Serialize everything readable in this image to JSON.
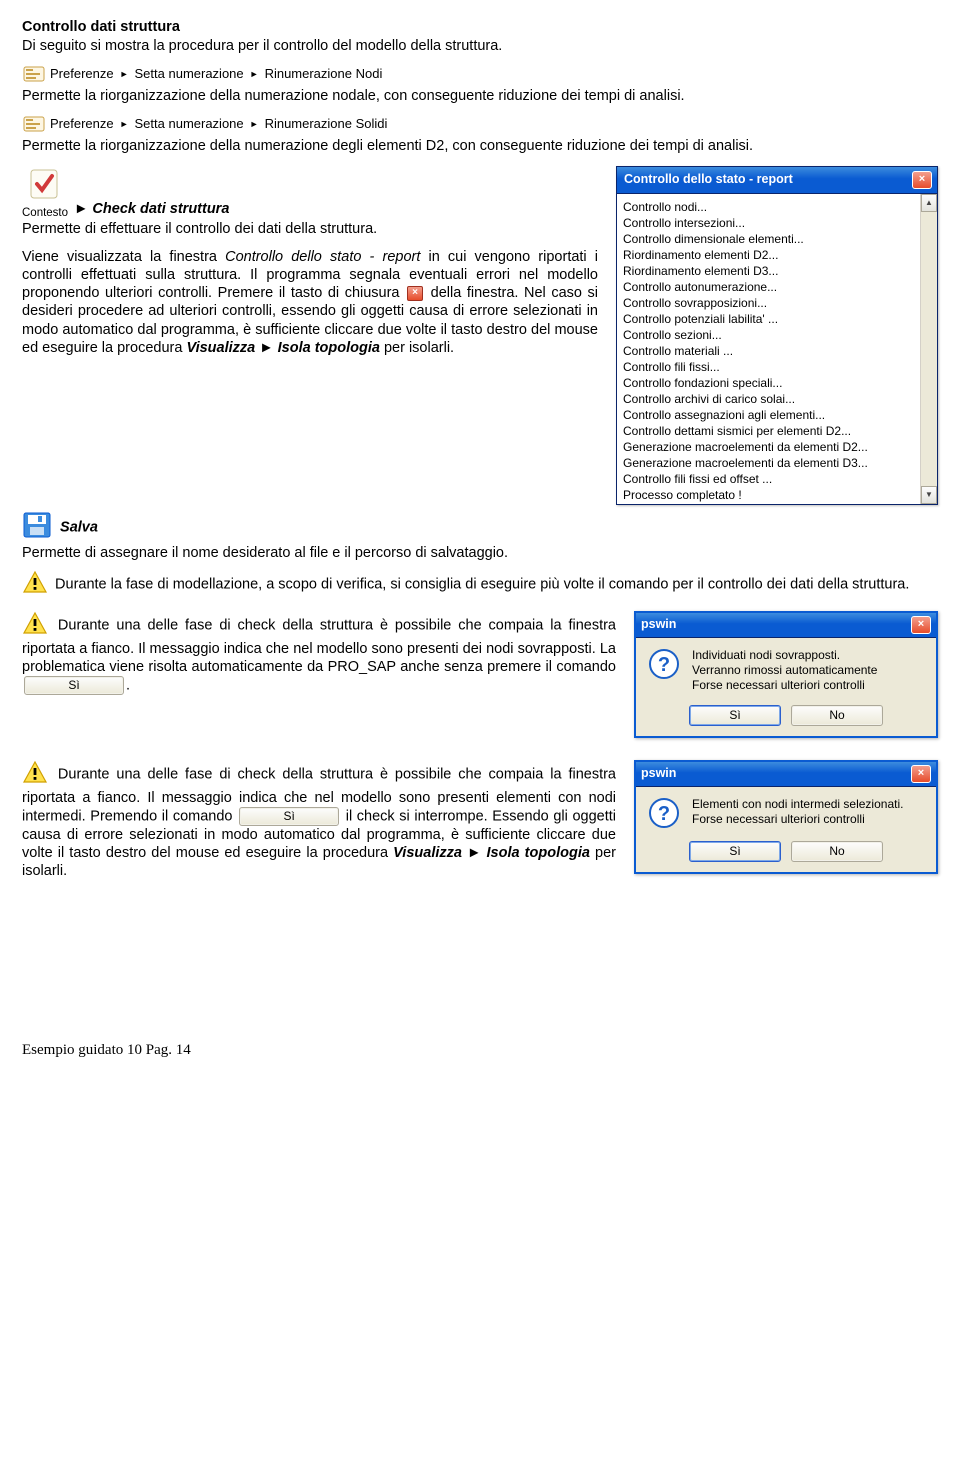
{
  "heading": "Controllo dati struttura",
  "intro": "Di seguito si mostra la procedura per il controllo del modello della struttura.",
  "breadcrumb1": {
    "a": "Preferenze",
    "b": "Setta numerazione",
    "c": "Rinumerazione Nodi"
  },
  "desc1": "Permette la riorganizzazione della numerazione nodale, con  conseguente riduzione dei tempi di analisi.",
  "breadcrumb2": {
    "a": "Preferenze",
    "b": "Setta numerazione",
    "c": "Rinumerazione Solidi"
  },
  "desc2": "Permette la riorganizzazione della numerazione degli elementi D2, con conseguente riduzione dei tempi di analisi.",
  "contesto_label": "Contesto",
  "check_head": "Check dati struttura",
  "check_desc": "Permette di effettuare il controllo dei dati della struttura.",
  "check_para_1a": "Viene visualizzata la finestra ",
  "check_para_1b": "Controllo dello stato - report",
  "check_para_1c": " in cui vengono riportati i controlli effettuati sulla struttura. Il programma segnala eventuali errori nel modello proponendo ulteriori controlli. Premere il tasto di chiusura ",
  "check_para_1d": " della finestra. Nel caso si desideri procedere ad ulteriori controlli, essendo gli oggetti causa di errore selezionati in modo automatico dal programma, è sufficiente cliccare due volte il tasto destro del mouse ed eseguire la procedura ",
  "check_para_1e": "Visualizza ► Isola topologia",
  "check_para_1f": " per isolarli.",
  "report_window": {
    "title": "Controllo dello stato - report",
    "items": [
      "Controllo nodi...",
      "Controllo intersezioni...",
      "Controllo dimensionale elementi...",
      "Riordinamento elementi D2...",
      "Riordinamento elementi D3...",
      "Controllo autonumerazione...",
      "Controllo sovrapposizioni...",
      "Controllo potenziali labilita' ...",
      "Controllo sezioni...",
      "Controllo materiali ...",
      "Controllo fili fissi...",
      "Controllo fondazioni speciali...",
      "Controllo archivi di carico solai...",
      "Controllo assegnazioni agli elementi...",
      "Controllo dettami sismici per elementi D2...",
      "Generazione macroelementi da elementi D2...",
      "Generazione macroelementi da elementi D3...",
      "Controllo fili fissi ed offset ...",
      "Processo completato !"
    ]
  },
  "salva_head": "Salva",
  "salva_desc": "Permette di assegnare il nome desiderato al file e il percorso di salvataggio.",
  "warn1": "Durante la fase di modellazione, a scopo di verifica, si consiglia di eseguire più volte il comando per il controllo dei dati della struttura.",
  "warn2_a": "Durante una delle fase di check della struttura è possibile che compaia la finestra riportata a fianco. Il messaggio indica che nel modello sono presenti dei nodi sovrapposti. La problematica viene risolta automaticamente da PRO_SAP anche senza premere il comando ",
  "warn2_b": ".",
  "warn3_a": "Durante una delle fase di check della struttura è possibile che compaia la finestra riportata a fianco. Il messaggio indica che nel modello sono presenti elementi con nodi intermedi. Premendo il comando ",
  "warn3_b": " il check si interrompe. Essendo gli oggetti causa di errore selezionati in modo automatico dal programma, è sufficiente cliccare due volte il tasto destro del mouse ed eseguire la procedura ",
  "warn3_c": "Visualizza ► Isola topologia",
  "warn3_d": " per isolarli.",
  "dialog1": {
    "title": "pswin",
    "line1": "Individuati nodi sovrapposti.",
    "line2": "Verranno rimossi automaticamente",
    "line3": "Forse necessari ulteriori controlli",
    "btn_yes": "Sì",
    "btn_no": "No"
  },
  "dialog2": {
    "title": "pswin",
    "line1": "Elementi con nodi intermedi selezionati.",
    "line2": "Forse necessari ulteriori controlli",
    "btn_yes": "Sì",
    "btn_no": "No"
  },
  "inline_btn": "Sì",
  "footer": "Esempio guidato 10 Pag. 14"
}
